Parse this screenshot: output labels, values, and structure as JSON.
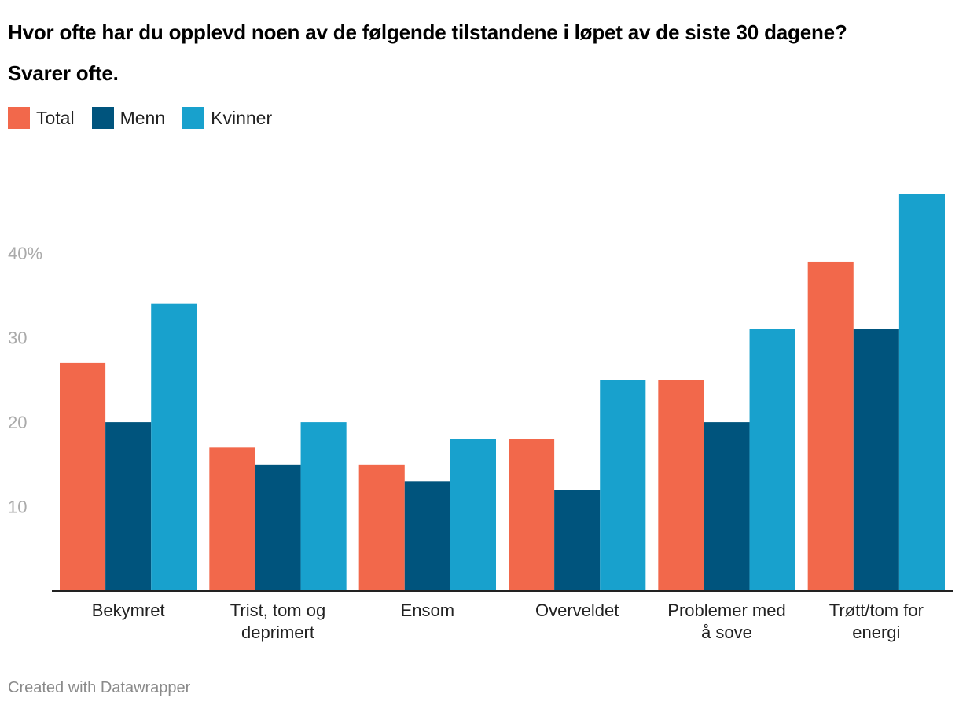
{
  "chart_data": {
    "type": "bar",
    "title": "Hvor ofte har du opplevd noen av de følgende tilstandene i løpet av de siste 30 dagene?",
    "subtitle": "Svarer ofte.",
    "categories": [
      [
        "Bekymret"
      ],
      [
        "Trist, tom og",
        "deprimert"
      ],
      [
        "Ensom"
      ],
      [
        "Overveldet"
      ],
      [
        "Problemer med",
        "å sove"
      ],
      [
        "Trøtt/tom for",
        "energi"
      ]
    ],
    "series": [
      {
        "name": "Total",
        "color": "#f2684b",
        "values": [
          27,
          17,
          15,
          18,
          25,
          39
        ]
      },
      {
        "name": "Menn",
        "color": "#00547d",
        "values": [
          20,
          15,
          13,
          12,
          20,
          31
        ]
      },
      {
        "name": "Kvinner",
        "color": "#18a1cd",
        "values": [
          34,
          20,
          18,
          25,
          31,
          47
        ]
      }
    ],
    "yticks": [
      {
        "value": 10,
        "label": "10"
      },
      {
        "value": 20,
        "label": "20"
      },
      {
        "value": 30,
        "label": "30"
      },
      {
        "value": 40,
        "label": "40%"
      }
    ],
    "ylim": [
      0,
      47
    ],
    "xlabel": "",
    "ylabel": "",
    "legend_position": "top-left"
  },
  "footer": {
    "credit": "Created with Datawrapper"
  }
}
